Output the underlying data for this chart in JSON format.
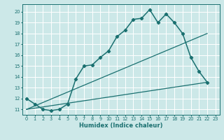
{
  "xlabel": "Humidex (Indice chaleur)",
  "ylabel": "",
  "bg_color": "#cce8e8",
  "grid_color": "#ffffff",
  "line_color": "#1a7070",
  "xlim": [
    -0.5,
    23.5
  ],
  "ylim": [
    10.5,
    20.7
  ],
  "xticks": [
    0,
    1,
    2,
    3,
    4,
    5,
    6,
    7,
    8,
    9,
    10,
    11,
    12,
    13,
    14,
    15,
    16,
    17,
    18,
    19,
    20,
    21,
    22,
    23
  ],
  "yticks": [
    11,
    12,
    13,
    14,
    15,
    16,
    17,
    18,
    19,
    20
  ],
  "line1_x": [
    0,
    1,
    2,
    3,
    4,
    5,
    6,
    7,
    8,
    9,
    10,
    11,
    12,
    13,
    14,
    15,
    16,
    17,
    18,
    19,
    20,
    21,
    22
  ],
  "line1_y": [
    12.0,
    11.5,
    11.0,
    10.9,
    11.0,
    11.5,
    13.8,
    15.0,
    15.1,
    15.8,
    16.4,
    17.7,
    18.3,
    19.3,
    19.4,
    20.2,
    19.0,
    19.8,
    19.0,
    18.0,
    15.8,
    14.5,
    13.5
  ],
  "line2_x": [
    0,
    22
  ],
  "line2_y": [
    11.0,
    18.0
  ],
  "line3_x": [
    0,
    22
  ],
  "line3_y": [
    11.0,
    13.5
  ],
  "xlabel_fontsize": 6.0,
  "tick_fontsize": 4.8
}
